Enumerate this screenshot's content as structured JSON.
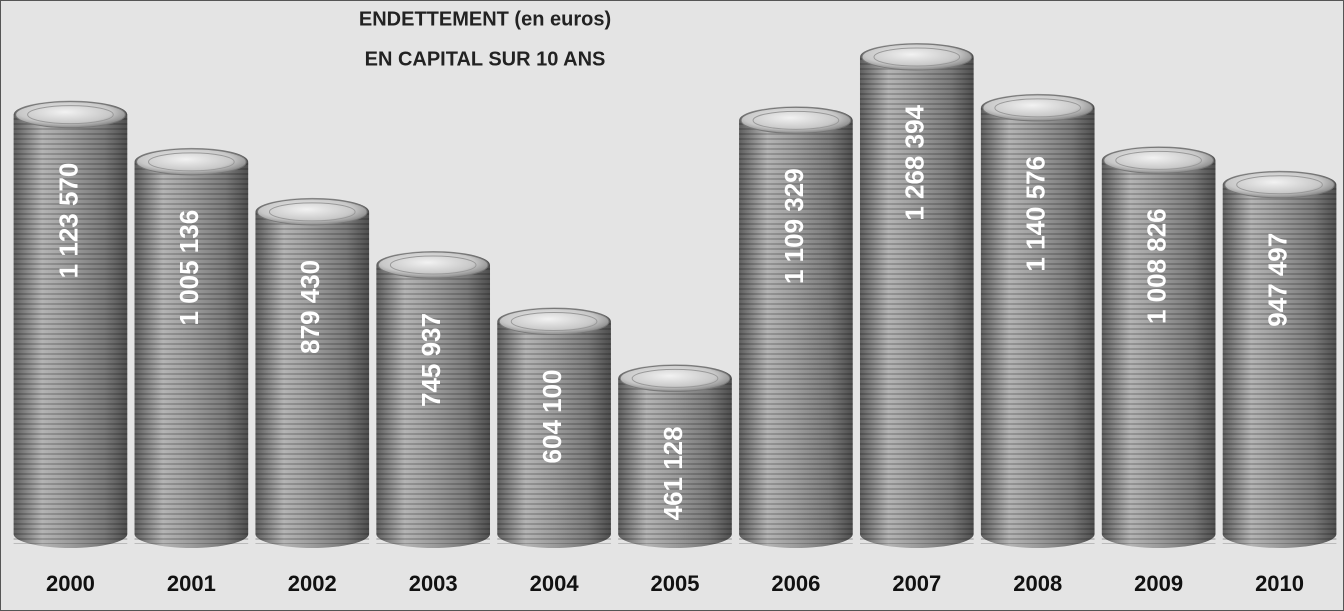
{
  "chart_data": {
    "type": "bar",
    "title": "ENDETTEMENT (en euros)",
    "subtitle": "EN CAPITAL SUR 10 ANS",
    "categories": [
      "2000",
      "2001",
      "2002",
      "2003",
      "2004",
      "2005",
      "2006",
      "2007",
      "2008",
      "2009",
      "2010"
    ],
    "values": [
      1123570,
      1005136,
      879430,
      745937,
      604100,
      461128,
      1109329,
      1268394,
      1140576,
      1008826,
      947497
    ],
    "value_labels": [
      "1 123 570",
      "1 005 136",
      "879 430",
      "745 937",
      "604 100",
      "461 128",
      "1 109 329",
      "1 268 394",
      "1 140 576",
      "1 008 826",
      "947 497"
    ],
    "color": "#9a9a9a"
  }
}
